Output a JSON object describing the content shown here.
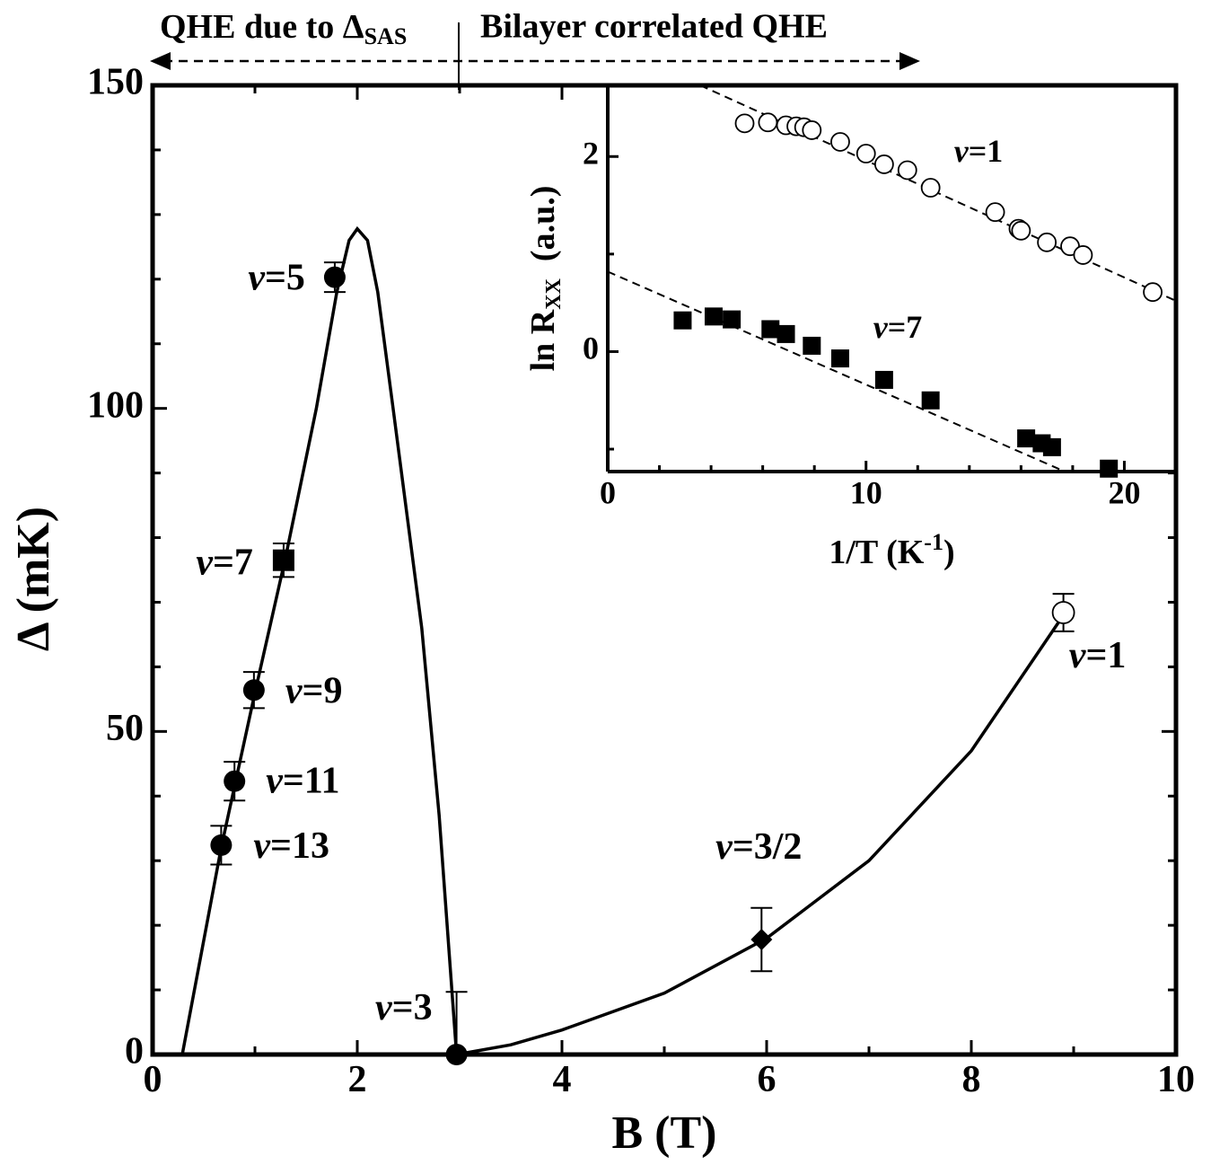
{
  "chart_data": [
    {
      "type": "scatter",
      "x_label": "B (T)",
      "y_label": "Δ (mK)",
      "annotations": [
        "QHE due to Δ",
        "SAS",
        "Bilayer correlated QHE"
      ],
      "xlim": [
        0,
        10
      ],
      "ylim": [
        0,
        150
      ],
      "xticks": [
        0,
        2,
        4,
        6,
        8,
        10
      ],
      "yticks": [
        0,
        50,
        100,
        150
      ],
      "xticks_minor": [
        1,
        3,
        5,
        7,
        9
      ],
      "yticks_minor": [
        10,
        20,
        30,
        40,
        60,
        70,
        80,
        90,
        110,
        120,
        130,
        140
      ],
      "color": "#000000",
      "line_style": "solid",
      "curves": [
        {
          "x": [
            0.29,
            0.67,
            1.0,
            1.3,
            1.6,
            1.8,
            1.92,
            2.0,
            2.1,
            2.2,
            2.35,
            2.63,
            2.8,
            2.97
          ],
          "values": [
            0,
            32,
            56,
            77,
            100,
            118,
            126,
            127.8,
            126,
            118,
            100,
            66,
            37,
            0
          ]
        },
        {
          "x": [
            2.97,
            3.5,
            4,
            5,
            6,
            7,
            8,
            8.9
          ],
          "values": [
            0,
            1.5,
            3.8,
            9.5,
            18,
            30,
            47,
            68
          ]
        }
      ],
      "series": [
        {
          "marker": "filled-circle",
          "x": [
            1.78,
            0.99,
            0.8,
            0.67,
            2.97
          ],
          "values": [
            120.3,
            56.4,
            42.3,
            32.4,
            0
          ],
          "errors": [
            2.3,
            2.8,
            3,
            3,
            9.7
          ],
          "labels": [
            "ν=5",
            "ν=9",
            "ν=11",
            "ν=13",
            "ν=3"
          ]
        },
        {
          "marker": "square",
          "x": [
            1.28
          ],
          "values": [
            76.5
          ],
          "errors": [
            2.6
          ],
          "labels": [
            "ν=7"
          ]
        },
        {
          "marker": "diamond",
          "x": [
            5.95
          ],
          "values": [
            17.8
          ],
          "errors": [
            4.9
          ],
          "labels": [
            "ν=3/2"
          ]
        },
        {
          "marker": "open-circle",
          "x": [
            8.9
          ],
          "values": [
            68.4
          ],
          "errors": [
            2.9
          ],
          "labels": [
            "ν=1"
          ]
        }
      ]
    },
    {
      "type": "scatter",
      "x_label": [
        "1/T (K",
        "-1",
        ")"
      ],
      "y_label": [
        "ln R",
        "XX",
        "  (a.u.)"
      ],
      "xlim": [
        0,
        22
      ],
      "ylim": [
        -1.23,
        2.73
      ],
      "xticks": [
        0,
        10,
        20
      ],
      "yticks": [
        0,
        2
      ],
      "xticks_minor": [
        2,
        4,
        6,
        8,
        12,
        14,
        16,
        18
      ],
      "yticks_minor": [
        -1,
        1
      ],
      "color": "#000000",
      "line_style": "dashed",
      "curves": [
        {
          "x": [
            3.58,
            22
          ],
          "values": [
            2.73,
            0.52
          ]
        },
        {
          "x": [
            0,
            17.7
          ],
          "values": [
            0.82,
            -1.23
          ]
        }
      ],
      "series": [
        {
          "name": "ν=1",
          "marker": "open-circle",
          "x": [
            5.3,
            6.2,
            6.9,
            7.3,
            7.6,
            7.9,
            9.0,
            10.0,
            10.7,
            11.6,
            12.5,
            15.0,
            15.9,
            16.0,
            17.0,
            17.9,
            18.4,
            21.1
          ],
          "values": [
            2.34,
            2.35,
            2.32,
            2.31,
            2.3,
            2.27,
            2.15,
            2.03,
            1.92,
            1.86,
            1.68,
            1.43,
            1.26,
            1.24,
            1.12,
            1.08,
            0.99,
            0.61
          ]
        },
        {
          "name": "ν=7",
          "marker": "square",
          "x": [
            2.9,
            4.1,
            4.8,
            6.3,
            6.9,
            7.9,
            9.0,
            10.7,
            12.5,
            16.2,
            16.8,
            17.2,
            19.4
          ],
          "values": [
            0.32,
            0.36,
            0.33,
            0.23,
            0.18,
            0.06,
            -0.07,
            -0.29,
            -0.5,
            -0.89,
            -0.94,
            -0.98,
            -1.2
          ]
        }
      ]
    }
  ]
}
